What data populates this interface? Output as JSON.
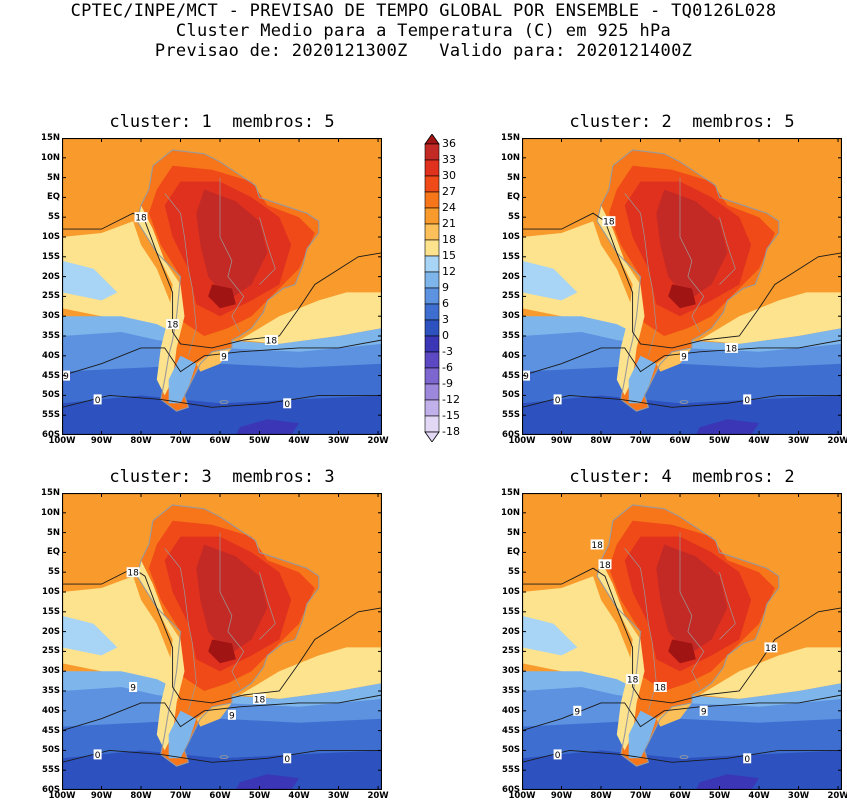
{
  "header": {
    "line1": "CPTEC/INPE/MCT - PREVISAO DE TEMPO GLOBAL POR ENSEMBLE - TQ0126L028",
    "line2": "Cluster Medio para a Temperatura (C) em 925 hPa",
    "line3": "Previsao de: 2020121300Z   Valido para: 2020121400Z"
  },
  "panels": [
    {
      "title": "cluster: 1  membros: 5",
      "contour_labels": [
        {
          "text": "18",
          "lon": -80,
          "lat": -5
        },
        {
          "text": "18",
          "lon": -72,
          "lat": -32
        },
        {
          "text": "18",
          "lon": -47,
          "lat": -36
        },
        {
          "text": "9",
          "lon": -59,
          "lat": -40
        },
        {
          "text": "9",
          "lon": -99,
          "lat": -45
        },
        {
          "text": "0",
          "lon": -91,
          "lat": -51
        },
        {
          "text": "0",
          "lon": -43,
          "lat": -52
        }
      ]
    },
    {
      "title": "cluster: 2  membros: 5",
      "contour_labels": [
        {
          "text": "18",
          "lon": -78,
          "lat": -6
        },
        {
          "text": "18",
          "lon": -47,
          "lat": -38
        },
        {
          "text": "9",
          "lon": -59,
          "lat": -40
        },
        {
          "text": "9",
          "lon": -99,
          "lat": -45
        },
        {
          "text": "0",
          "lon": -91,
          "lat": -51
        },
        {
          "text": "0",
          "lon": -43,
          "lat": -51
        }
      ]
    },
    {
      "title": "cluster: 3  membros: 3",
      "contour_labels": [
        {
          "text": "18",
          "lon": -82,
          "lat": -5
        },
        {
          "text": "9",
          "lon": -82,
          "lat": -34
        },
        {
          "text": "18",
          "lon": -50,
          "lat": -37
        },
        {
          "text": "9",
          "lon": -57,
          "lat": -41
        },
        {
          "text": "0",
          "lon": -91,
          "lat": -51
        },
        {
          "text": "0",
          "lon": -43,
          "lat": -52
        }
      ]
    },
    {
      "title": "cluster: 4  membros: 2",
      "contour_labels": [
        {
          "text": "18",
          "lon": -81,
          "lat": 2
        },
        {
          "text": "18",
          "lon": -79,
          "lat": -3
        },
        {
          "text": "18",
          "lon": -37,
          "lat": -24
        },
        {
          "text": "18",
          "lon": -72,
          "lat": -32
        },
        {
          "text": "18",
          "lon": -65,
          "lat": -34
        },
        {
          "text": "9",
          "lon": -86,
          "lat": -40
        },
        {
          "text": "9",
          "lon": -54,
          "lat": -40
        },
        {
          "text": "0",
          "lon": -91,
          "lat": -51
        },
        {
          "text": "0",
          "lon": -43,
          "lat": -52
        }
      ]
    }
  ],
  "axes": {
    "lat_labels": [
      "15N",
      "10N",
      "5N",
      "EQ",
      "5S",
      "10S",
      "15S",
      "20S",
      "25S",
      "30S",
      "35S",
      "40S",
      "45S",
      "50S",
      "55S",
      "60S"
    ],
    "lat_values": [
      15,
      10,
      5,
      0,
      -5,
      -10,
      -15,
      -20,
      -25,
      -30,
      -35,
      -40,
      -45,
      -50,
      -55,
      -60
    ],
    "lon_labels": [
      "100W",
      "90W",
      "80W",
      "70W",
      "60W",
      "50W",
      "40W",
      "30W",
      "20W"
    ],
    "lon_values": [
      -100,
      -90,
      -80,
      -70,
      -60,
      -50,
      -40,
      -30,
      -20
    ],
    "lon_range": [
      -100,
      -19
    ],
    "lat_range": [
      -60,
      15
    ]
  },
  "colorbar": {
    "labels": [
      "36",
      "33",
      "30",
      "27",
      "24",
      "21",
      "18",
      "15",
      "12",
      "9",
      "6",
      "3",
      "0",
      "-3",
      "-6",
      "-9",
      "-12",
      "-15",
      "-18"
    ],
    "colors": [
      "#a01414",
      "#c42a25",
      "#e0301e",
      "#ef4a18",
      "#f7761a",
      "#f99b2c",
      "#fbc05a",
      "#fde38e",
      "#a8d4f5",
      "#7eb6ec",
      "#5c92e0",
      "#3e6fd0",
      "#2d52bf",
      "#3a36b6",
      "#5b48c2",
      "#7e66d0",
      "#9e88dc",
      "#c2b0ea",
      "#e2d8f6"
    ]
  }
}
